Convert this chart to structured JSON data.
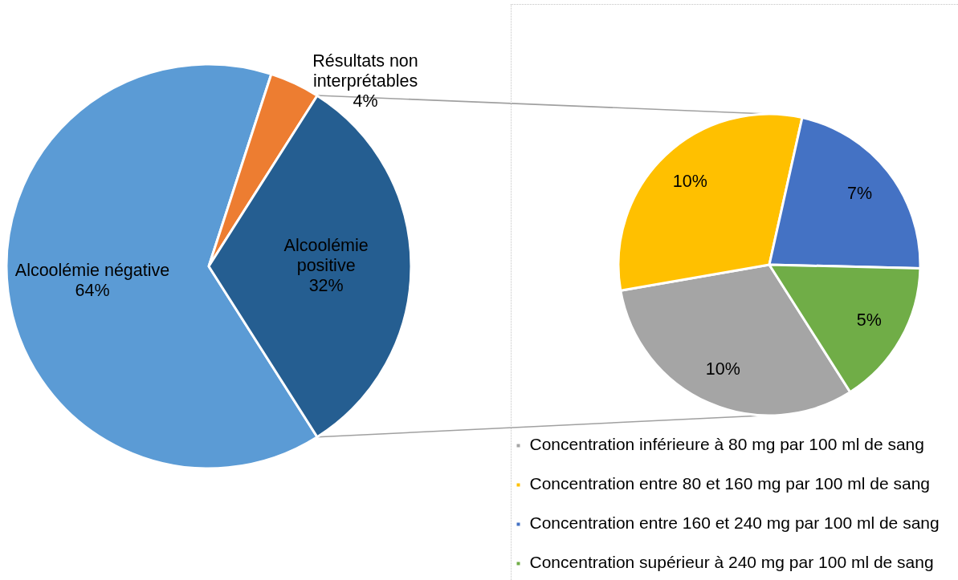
{
  "chart_data": [
    {
      "type": "pie",
      "categories": [
        "Alcoolémie négative",
        "Résultats non interprétables",
        "Alcoolémie positive"
      ],
      "values": [
        64,
        4,
        32
      ],
      "colors": [
        "#5b9bd5",
        "#ed7d31",
        "#255e91"
      ],
      "value_labels": [
        "64%",
        "4%",
        "32%"
      ]
    },
    {
      "type": "pie",
      "categories": [
        "Concentration inférieure à 80 mg par 100 ml de sang",
        "Concentration entre 80 et 160 mg par 100 ml de sang",
        "Concentration entre 160 et 240 mg par 100 ml de sang",
        "Concentration supérieur à 240 mg par 100 ml de sang"
      ],
      "values": [
        10,
        10,
        7,
        5
      ],
      "colors": [
        "#a5a5a5",
        "#ffc000",
        "#4472c4",
        "#70ad47"
      ],
      "value_labels": [
        "10%",
        "10%",
        "7%",
        "5%"
      ],
      "legend": "bottom left"
    }
  ]
}
